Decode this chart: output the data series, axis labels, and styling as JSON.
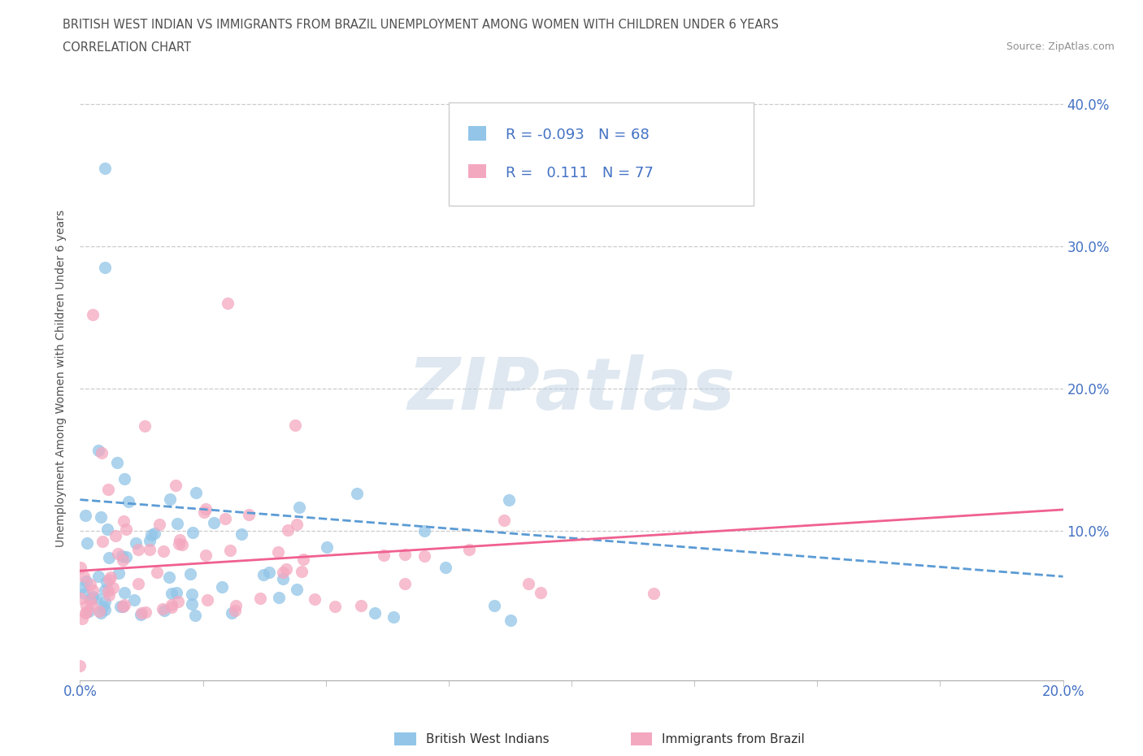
{
  "title_line1": "BRITISH WEST INDIAN VS IMMIGRANTS FROM BRAZIL UNEMPLOYMENT AMONG WOMEN WITH CHILDREN UNDER 6 YEARS",
  "title_line2": "CORRELATION CHART",
  "source": "Source: ZipAtlas.com",
  "ylabel": "Unemployment Among Women with Children Under 6 years",
  "xlim": [
    0.0,
    0.2
  ],
  "ylim": [
    -0.005,
    0.42
  ],
  "xtick_left": 0.0,
  "xtick_right": 0.2,
  "xticklabel_left": "0.0%",
  "xticklabel_right": "20.0%",
  "yticks": [
    0.1,
    0.2,
    0.3,
    0.4
  ],
  "yticklabels": [
    "10.0%",
    "20.0%",
    "30.0%",
    "40.0%"
  ],
  "blue_color": "#92C5E8",
  "pink_color": "#F4A8C0",
  "blue_line_color": "#5B9BD5",
  "pink_line_color": "#F06090",
  "blue_R": -0.093,
  "blue_N": 68,
  "pink_R": 0.111,
  "pink_N": 77,
  "legend_label_blue": "British West Indians",
  "legend_label_pink": "Immigrants from Brazil",
  "watermark_text": "ZIPatlas",
  "background_color": "#FFFFFF",
  "title_color": "#505050",
  "source_color": "#909090",
  "tick_color": "#4472C4",
  "legend_R_color": "#4472C4",
  "legend_N_color": "#4472C4",
  "blue_trend_start_y": 0.122,
  "blue_trend_end_y": 0.068,
  "pink_trend_start_y": 0.072,
  "pink_trend_end_y": 0.115
}
